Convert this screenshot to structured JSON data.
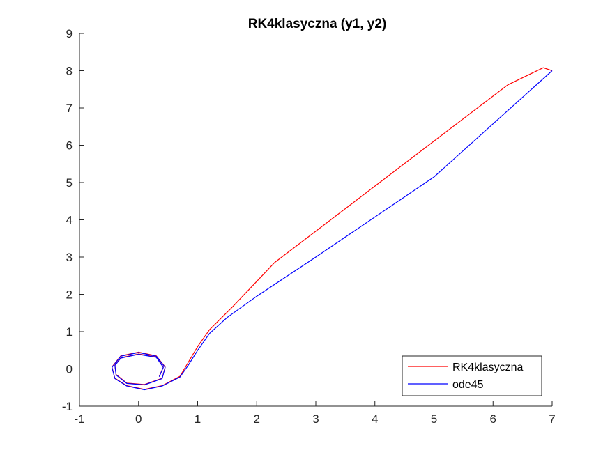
{
  "chart_data": {
    "type": "line",
    "title": "RK4klasyczna (y1, y2)",
    "xlabel": "",
    "ylabel": "",
    "xlim": [
      -1,
      7
    ],
    "ylim": [
      -1,
      9
    ],
    "x_ticks": [
      "-1",
      "0",
      "1",
      "2",
      "3",
      "4",
      "5",
      "6",
      "7"
    ],
    "y_ticks": [
      "-1",
      "0",
      "1",
      "2",
      "3",
      "4",
      "5",
      "6",
      "7",
      "8",
      "9"
    ],
    "grid": false,
    "legend_position": "bottom-right",
    "series": [
      {
        "name": "RK4klasyczna",
        "color": "#ff0000",
        "x": [
          7.0,
          6.85,
          6.25,
          2.3,
          1.6,
          1.2,
          1.0,
          0.85,
          0.7,
          0.4,
          0.1,
          -0.2,
          -0.4,
          -0.45,
          -0.3,
          0.0,
          0.3,
          0.45,
          0.4,
          0.1,
          -0.2,
          -0.38,
          -0.4,
          -0.3,
          0.0,
          0.3,
          0.42,
          0.35
        ],
        "y": [
          8.0,
          8.08,
          7.62,
          2.85,
          1.68,
          1.05,
          0.6,
          0.2,
          -0.2,
          -0.45,
          -0.55,
          -0.45,
          -0.25,
          0.05,
          0.35,
          0.45,
          0.35,
          0.05,
          -0.25,
          -0.42,
          -0.38,
          -0.15,
          0.1,
          0.3,
          0.4,
          0.32,
          0.05,
          -0.2
        ]
      },
      {
        "name": "ode45",
        "color": "#0000ff",
        "x": [
          7.0,
          5.0,
          3.0,
          2.0,
          1.5,
          1.2,
          1.0,
          0.85,
          0.7,
          0.4,
          0.1,
          -0.2,
          -0.4,
          -0.45,
          -0.3,
          0.0,
          0.3,
          0.45,
          0.4,
          0.1,
          -0.2,
          -0.38,
          -0.4,
          -0.3,
          0.0,
          0.3,
          0.42,
          0.35
        ],
        "y": [
          8.0,
          5.15,
          3.0,
          1.95,
          1.38,
          0.95,
          0.5,
          0.12,
          -0.22,
          -0.46,
          -0.56,
          -0.46,
          -0.26,
          0.04,
          0.34,
          0.44,
          0.34,
          0.04,
          -0.26,
          -0.43,
          -0.39,
          -0.16,
          0.09,
          0.29,
          0.39,
          0.31,
          0.04,
          -0.21
        ]
      }
    ]
  }
}
